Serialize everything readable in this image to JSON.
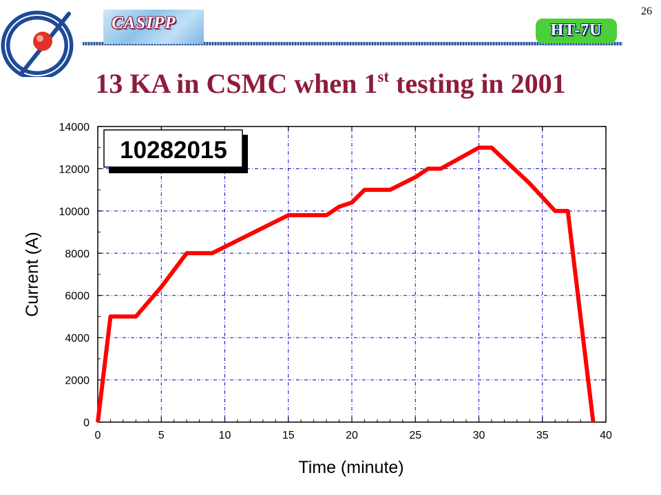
{
  "header": {
    "casipp_label": "CASIPP",
    "ht7u_label": "HT-7U",
    "page_number": "26"
  },
  "slide": {
    "title_main": "13 KA in CSMC when 1",
    "title_sup": "st",
    "title_end": " testing in 2001"
  },
  "colors": {
    "title": "#8e1c3a",
    "line": "#ff0000",
    "grid": "#0000cc"
  },
  "chart_data": {
    "type": "line",
    "xlabel": "Time (minute)",
    "ylabel": "Current (A)",
    "xlim": [
      0,
      40
    ],
    "ylim": [
      0,
      14000
    ],
    "x_ticks": [
      0,
      5,
      10,
      15,
      20,
      25,
      30,
      35,
      40
    ],
    "y_ticks": [
      0,
      2000,
      4000,
      6000,
      8000,
      10000,
      12000,
      14000
    ],
    "grid": true,
    "annotation": "10282015",
    "series": [
      {
        "x": [
          0,
          1,
          3,
          5,
          7,
          9,
          11,
          13,
          15,
          18,
          19,
          20,
          21,
          23,
          25,
          26,
          27,
          30,
          31,
          34,
          36,
          37,
          39
        ],
        "y": [
          0,
          5000,
          5000,
          6400,
          8000,
          8000,
          8600,
          9200,
          9800,
          9800,
          10200,
          10400,
          11000,
          11000,
          11600,
          12000,
          12000,
          13000,
          13000,
          11300,
          10000,
          10000,
          0
        ]
      }
    ]
  }
}
